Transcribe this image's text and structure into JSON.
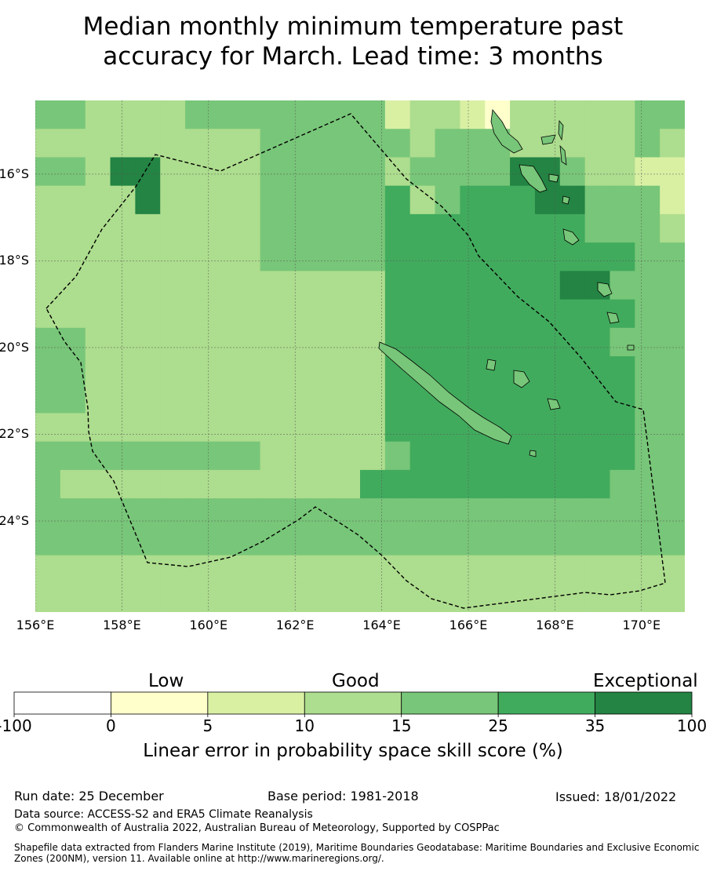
{
  "title": {
    "line1": "Median monthly minimum temperature past",
    "line2": "accuracy for March. Lead time: 3 months"
  },
  "map": {
    "lon_range": [
      156.0,
      171.0
    ],
    "lat_range": [
      -26.1,
      -14.3
    ],
    "grid_lines": true,
    "boundary": "dashed",
    "lat_ticks": [
      {
        "value": -16,
        "label": "16°S"
      },
      {
        "value": -18,
        "label": "18°S"
      },
      {
        "value": -20,
        "label": "20°S"
      },
      {
        "value": -22,
        "label": "22°S"
      },
      {
        "value": -24,
        "label": "24°S"
      }
    ],
    "lon_ticks": [
      {
        "value": 156,
        "label": "156°E"
      },
      {
        "value": 158,
        "label": "158°E"
      },
      {
        "value": 160,
        "label": "160°E"
      },
      {
        "value": 162,
        "label": "162°E"
      },
      {
        "value": 164,
        "label": "164°E"
      },
      {
        "value": 166,
        "label": "166°E"
      },
      {
        "value": 168,
        "label": "168°E"
      },
      {
        "value": 170,
        "label": "170°E"
      }
    ]
  },
  "skill_grid": [
    "33222233333333122102222233",
    "22222222233333323332222232",
    "33255222233333233335532211",
    "22225222233333423444553331",
    "22222222233333444444443332",
    "22222222233333444444444433",
    "22222222222222444444455333",
    "22222222222222444444444433",
    "33222222222222444444444333",
    "33222222222222444444444433",
    "33222222222222444444444433",
    "22222222222222444444444433",
    "33333333322222344444444433",
    "32222222222224444444444333",
    "33333333333333333333333333",
    "33333333333333333333333333",
    "22222222222222222222222222",
    "22222222222222222222222222"
  ],
  "colorbar": {
    "categories": [
      {
        "label": "Low"
      },
      {
        "label": "Good"
      },
      {
        "label": "Exceptional"
      }
    ],
    "bins": [
      {
        "lo": -100,
        "hi": 0,
        "color": "#ffffff"
      },
      {
        "lo": 0,
        "hi": 5,
        "color": "#ffffcc"
      },
      {
        "lo": 5,
        "hi": 10,
        "color": "#d9f0a3"
      },
      {
        "lo": 10,
        "hi": 15,
        "color": "#addd8e"
      },
      {
        "lo": 15,
        "hi": 25,
        "color": "#78c679"
      },
      {
        "lo": 25,
        "hi": 35,
        "color": "#41ab5d"
      },
      {
        "lo": 35,
        "hi": 100,
        "color": "#238443"
      }
    ],
    "ticks": [
      "-100",
      "0",
      "5",
      "10",
      "15",
      "25",
      "35",
      "100"
    ],
    "label": "Linear error in probability space skill score (%)"
  },
  "footer": {
    "run_date": "Run date: 25 December",
    "base_period": "Base period: 1981-2018",
    "issued": "Issued: 18/01/2022",
    "data_source": "Data source: ACCESS-S2 and ERA5 Climate Reanalysis",
    "copyright": "© Commonwealth of Australia 2022, Australian Bureau of Meteorology, Supported by COSPPac",
    "shapefile": "Shapefile data extracted from Flanders Marine Institute (2019), Maritime Boundaries Geodatabase: Maritime Boundaries and Exclusive Economic Zones (200NM), version 11. Available online at http://www.marineregions.org/."
  }
}
